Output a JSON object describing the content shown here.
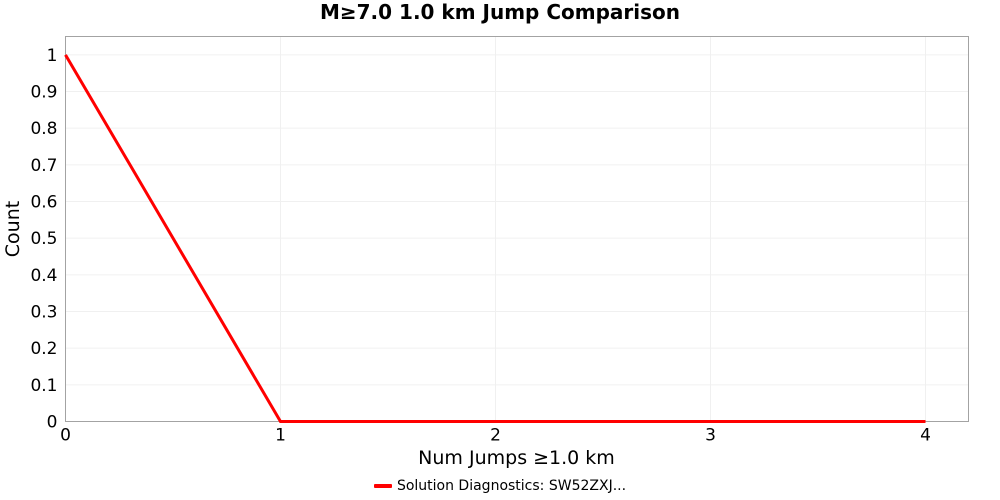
{
  "chart_data": {
    "type": "line",
    "title": "M≥7.0 1.0 km Jump Comparison",
    "xlabel": "Num Jumps ≥1.0 km",
    "ylabel": "Count",
    "x": [
      0,
      1,
      2,
      3,
      4
    ],
    "series": [
      {
        "name": "Solution Diagnostics: SW52ZXJ...",
        "color": "#ff0000",
        "line_width": 3,
        "values": [
          1,
          0,
          0,
          0,
          0
        ]
      }
    ],
    "xlim": [
      0,
      4.2
    ],
    "ylim": [
      0,
      1.05
    ],
    "xticks": {
      "values": [
        0,
        1,
        2,
        3,
        4
      ],
      "labels": [
        "0",
        "1",
        "2",
        "3",
        "4"
      ]
    },
    "yticks": {
      "values": [
        0,
        0.1,
        0.2,
        0.3,
        0.4,
        0.5,
        0.6,
        0.7,
        0.8,
        0.9,
        1.0
      ],
      "labels": [
        "0",
        "0.1",
        "0.2",
        "0.3",
        "0.4",
        "0.5",
        "0.6",
        "0.7",
        "0.8",
        "0.9",
        "1"
      ]
    },
    "grid": true,
    "legend_position": "bottom"
  },
  "style": {
    "background": "#ffffff",
    "grid_color": "#f0f0f0",
    "border_color": "#a3a3a3",
    "text_color": "#000000"
  }
}
